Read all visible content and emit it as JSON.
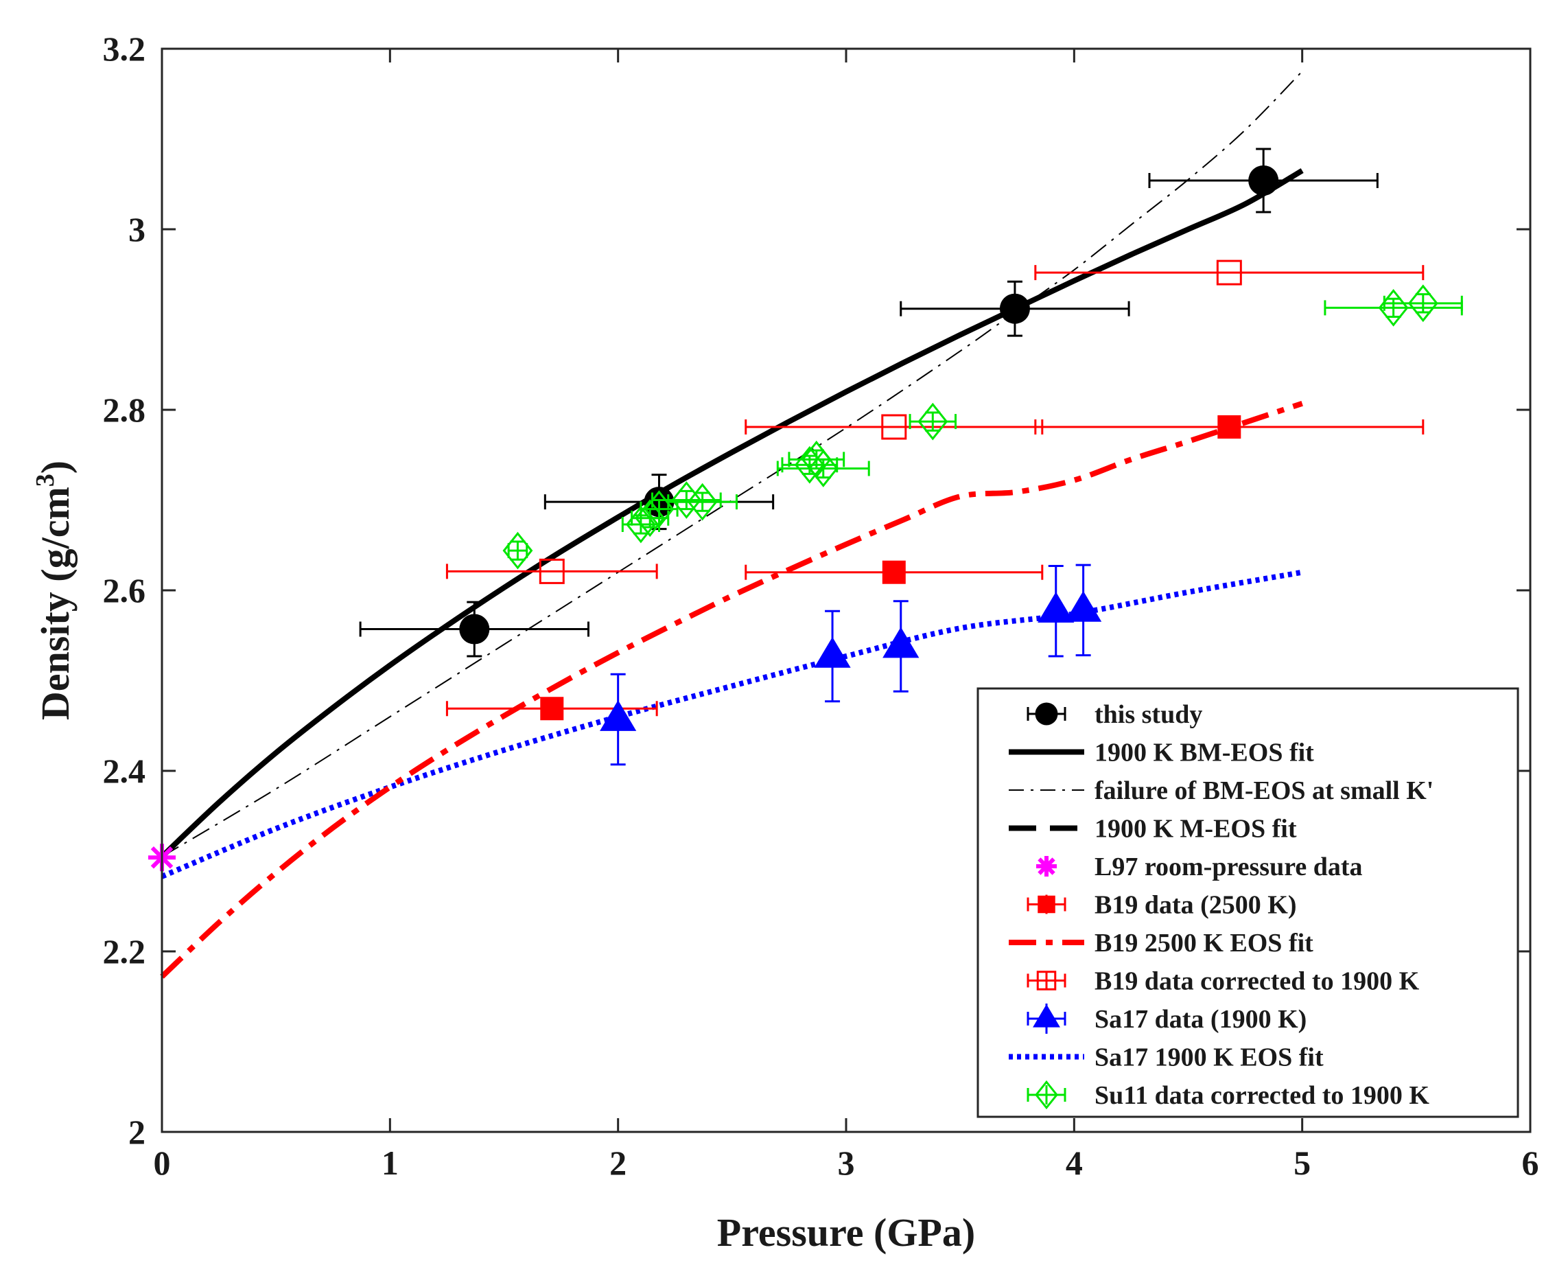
{
  "chart_data": {
    "type": "scatter",
    "title": "",
    "xlabel": "Pressure (GPa)",
    "ylabel_main": "Density (g/cm",
    "ylabel_sup": "3",
    "ylabel_close": ")",
    "xlim": [
      0,
      6
    ],
    "ylim": [
      2,
      3.2
    ],
    "xticks": [
      0,
      1,
      2,
      3,
      4,
      5,
      6
    ],
    "xtick_labels": [
      "0",
      "1",
      "2",
      "3",
      "4",
      "5",
      "6"
    ],
    "yticks": [
      2,
      2.2,
      2.4,
      2.6,
      2.8,
      3,
      3.2
    ],
    "ytick_labels": [
      "2",
      "2.2",
      "2.4",
      "2.6",
      "2.8",
      "3",
      "3.2"
    ],
    "grid": false,
    "legend_position": "bottom-right",
    "curves": [
      {
        "name": "1900 K BM-EOS fit",
        "color": "#000000",
        "style": "solid-thick",
        "x": [
          0,
          0.25,
          0.5,
          0.75,
          1,
          1.25,
          1.5,
          1.75,
          2,
          2.25,
          2.5,
          2.75,
          3,
          3.25,
          3.5,
          3.75,
          4,
          4.25,
          4.5,
          4.75,
          5
        ],
        "y": [
          2.305,
          2.365,
          2.42,
          2.47,
          2.517,
          2.561,
          2.603,
          2.643,
          2.681,
          2.718,
          2.753,
          2.787,
          2.82,
          2.852,
          2.883,
          2.913,
          2.943,
          2.972,
          3.0,
          3.028,
          3.065
        ]
      },
      {
        "name": "failure of BM-EOS at small K'",
        "color": "#000000",
        "style": "dashdot-thin",
        "x": [
          0,
          0.5,
          1,
          1.5,
          2,
          2.5,
          3,
          3.5,
          3.75,
          4,
          4.25,
          4.5,
          4.75,
          5
        ],
        "y": [
          2.305,
          2.38,
          2.46,
          2.54,
          2.62,
          2.7,
          2.78,
          2.865,
          2.91,
          2.955,
          3.005,
          3.055,
          3.11,
          3.175
        ]
      },
      {
        "name": "B19 2500 K EOS fit",
        "color": "#ff0000",
        "style": "dashdot-thick",
        "x": [
          0,
          0.25,
          0.5,
          0.75,
          1,
          1.25,
          1.5,
          1.75,
          2,
          2.25,
          2.5,
          2.75,
          3,
          3.25,
          3.5,
          3.75,
          4,
          4.25,
          4.5,
          4.75,
          5
        ],
        "y": [
          2.172,
          2.232,
          2.287,
          2.337,
          2.382,
          2.423,
          2.461,
          2.497,
          2.531,
          2.563,
          2.594,
          2.623,
          2.651,
          2.678,
          2.704,
          2.709,
          2.722,
          2.745,
          2.765,
          2.786,
          2.807
        ]
      },
      {
        "name": "Sa17 1900 K EOS fit",
        "color": "#0000ff",
        "style": "dotted-thick",
        "x": [
          0,
          0.5,
          1,
          1.5,
          2,
          2.5,
          3,
          3.5,
          4,
          4.5,
          5
        ],
        "y": [
          2.283,
          2.336,
          2.382,
          2.423,
          2.46,
          2.494,
          2.527,
          2.558,
          2.574,
          2.598,
          2.62
        ]
      }
    ],
    "series": [
      {
        "name": "this study",
        "color": "#000000",
        "marker": "circle-filled",
        "points": [
          {
            "x": 1.37,
            "y": 2.557,
            "xerr": 0.5,
            "yerr": 0.03
          },
          {
            "x": 2.18,
            "y": 2.698,
            "xerr": 0.5,
            "yerr": 0.03
          },
          {
            "x": 3.74,
            "y": 2.912,
            "xerr": 0.5,
            "yerr": 0.03
          },
          {
            "x": 4.83,
            "y": 3.054,
            "xerr": 0.5,
            "yerr": 0.035
          }
        ]
      },
      {
        "name": "L97 room-pressure data",
        "color": "#ff00ff",
        "marker": "asterisk",
        "points": [
          {
            "x": 0,
            "y": 2.304
          }
        ]
      },
      {
        "name": "B19 data (2500 K)",
        "color": "#ff0000",
        "marker": "square-filled",
        "points": [
          {
            "x": 1.71,
            "y": 2.469,
            "xerr": 0.46,
            "yerr": 0
          },
          {
            "x": 3.21,
            "y": 2.62,
            "xerr": 0.65,
            "yerr": 0
          },
          {
            "x": 4.68,
            "y": 2.781,
            "xerr": 0.85,
            "yerr": 0
          }
        ]
      },
      {
        "name": "B19 data corrected to 1900 K",
        "color": "#ff0000",
        "marker": "square-open",
        "points": [
          {
            "x": 1.71,
            "y": 2.621,
            "xerr": 0.46,
            "yerr": 0
          },
          {
            "x": 3.21,
            "y": 2.781,
            "xerr": 0.65,
            "yerr": 0
          },
          {
            "x": 4.68,
            "y": 2.952,
            "xerr": 0.85,
            "yerr": 0
          }
        ]
      },
      {
        "name": "Sa17 data (1900 K)",
        "color": "#0000ff",
        "marker": "triangle-filled",
        "points": [
          {
            "x": 2.0,
            "y": 2.457,
            "xerr": 0,
            "yerr": 0.05
          },
          {
            "x": 2.94,
            "y": 2.527,
            "xerr": 0,
            "yerr": 0.05
          },
          {
            "x": 3.24,
            "y": 2.538,
            "xerr": 0,
            "yerr": 0.05
          },
          {
            "x": 3.92,
            "y": 2.577,
            "xerr": 0,
            "yerr": 0.05
          },
          {
            "x": 4.04,
            "y": 2.578,
            "xerr": 0,
            "yerr": 0.05
          }
        ]
      },
      {
        "name": "Su11 data corrected to 1900 K",
        "color": "#00e600",
        "marker": "diamond-open",
        "points": [
          {
            "x": 1.56,
            "y": 2.644,
            "xerr": 0.04,
            "yerr": 0.01
          },
          {
            "x": 2.1,
            "y": 2.673,
            "xerr": 0.08,
            "yerr": 0.01
          },
          {
            "x": 2.14,
            "y": 2.68,
            "xerr": 0.08,
            "yerr": 0.01
          },
          {
            "x": 2.18,
            "y": 2.69,
            "xerr": 0.08,
            "yerr": 0.01
          },
          {
            "x": 2.3,
            "y": 2.7,
            "xerr": 0.15,
            "yerr": 0.01
          },
          {
            "x": 2.37,
            "y": 2.698,
            "xerr": 0.15,
            "yerr": 0.01
          },
          {
            "x": 2.84,
            "y": 2.739,
            "xerr": 0.12,
            "yerr": 0.01
          },
          {
            "x": 2.87,
            "y": 2.745,
            "xerr": 0.12,
            "yerr": 0.01
          },
          {
            "x": 2.9,
            "y": 2.735,
            "xerr": 0.2,
            "yerr": 0.01
          },
          {
            "x": 3.38,
            "y": 2.787,
            "xerr": 0.1,
            "yerr": 0.01
          },
          {
            "x": 5.4,
            "y": 2.913,
            "xerr": 0.3,
            "yerr": 0.01
          },
          {
            "x": 5.53,
            "y": 2.918,
            "xerr": 0.17,
            "yerr": 0.01
          }
        ]
      }
    ],
    "legend": [
      {
        "label": "this study",
        "icon": "errbar-circle",
        "color": "#000000"
      },
      {
        "label": "1900 K BM-EOS fit",
        "icon": "line-solid",
        "color": "#000000"
      },
      {
        "label": "failure of BM-EOS at small K'",
        "icon": "line-dashdot-thin",
        "color": "#000000"
      },
      {
        "label": "1900 K M-EOS fit",
        "icon": "line-dashed",
        "color": "#000000"
      },
      {
        "label": "L97 room-pressure data",
        "icon": "asterisk",
        "color": "#ff00ff"
      },
      {
        "label": "B19 data (2500 K)",
        "icon": "errbar-square-filled",
        "color": "#ff0000"
      },
      {
        "label": "B19 2500 K EOS fit",
        "icon": "line-dashdot",
        "color": "#ff0000"
      },
      {
        "label": "B19 data corrected to 1900 K",
        "icon": "errbar-square-open",
        "color": "#ff0000"
      },
      {
        "label": "Sa17 data (1900 K)",
        "icon": "errbar-triangle",
        "color": "#0000ff"
      },
      {
        "label": "Sa17 1900 K EOS fit",
        "icon": "line-dotted",
        "color": "#0000ff"
      },
      {
        "label": "Su11 data corrected to 1900 K",
        "icon": "errbar-diamond",
        "color": "#00e600"
      }
    ]
  }
}
